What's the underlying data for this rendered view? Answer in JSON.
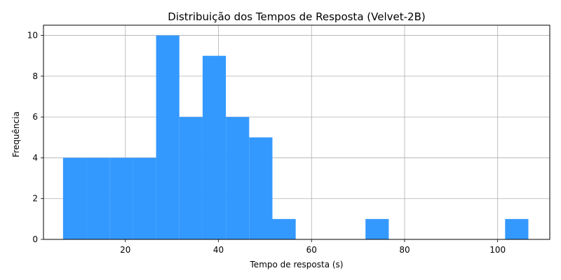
{
  "chart_data": {
    "type": "bar",
    "title": "Distribuição dos Tempos de Resposta (Velvet-2B)",
    "xlabel": "Tempo de resposta (s)",
    "ylabel": "Frequência",
    "bar_color": "#3399ff",
    "grid": true,
    "xlim": [
      2.4,
      111.2
    ],
    "ylim": [
      0,
      10.5
    ],
    "x_ticks": [
      20,
      40,
      60,
      80,
      100
    ],
    "y_ticks": [
      0,
      2,
      4,
      6,
      8,
      10
    ],
    "bins": [
      {
        "start": 6.6,
        "end": 11.6,
        "count": 4
      },
      {
        "start": 11.6,
        "end": 16.6,
        "count": 4
      },
      {
        "start": 16.6,
        "end": 21.6,
        "count": 4
      },
      {
        "start": 21.6,
        "end": 26.6,
        "count": 4
      },
      {
        "start": 26.6,
        "end": 31.6,
        "count": 10
      },
      {
        "start": 31.6,
        "end": 36.6,
        "count": 6
      },
      {
        "start": 36.6,
        "end": 41.6,
        "count": 9
      },
      {
        "start": 41.6,
        "end": 46.6,
        "count": 6
      },
      {
        "start": 46.6,
        "end": 51.6,
        "count": 5
      },
      {
        "start": 51.6,
        "end": 56.6,
        "count": 1
      },
      {
        "start": 56.6,
        "end": 61.6,
        "count": 0
      },
      {
        "start": 61.6,
        "end": 66.6,
        "count": 0
      },
      {
        "start": 66.6,
        "end": 71.6,
        "count": 0
      },
      {
        "start": 71.6,
        "end": 76.6,
        "count": 1
      },
      {
        "start": 76.6,
        "end": 81.6,
        "count": 0
      },
      {
        "start": 81.6,
        "end": 86.6,
        "count": 0
      },
      {
        "start": 86.6,
        "end": 91.6,
        "count": 0
      },
      {
        "start": 91.6,
        "end": 96.6,
        "count": 0
      },
      {
        "start": 96.6,
        "end": 101.6,
        "count": 0
      },
      {
        "start": 101.6,
        "end": 106.6,
        "count": 1
      }
    ]
  }
}
